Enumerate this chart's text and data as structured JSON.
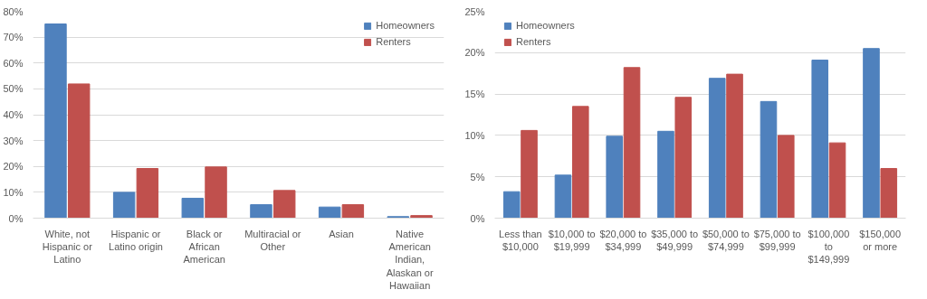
{
  "chart_data": [
    {
      "type": "bar",
      "categories": [
        "White, not Hispanic or Latino",
        "Hispanic or Latino origin",
        "Black or African American",
        "Multiracial or Other",
        "Asian",
        "Native American Indian, Alaskan or Hawaiian"
      ],
      "series": [
        {
          "name": "Homeowners",
          "color": "#4f81bd",
          "values": [
            75.1,
            10.0,
            7.7,
            5.2,
            4.3,
            0.6
          ]
        },
        {
          "name": "Renters",
          "color": "#c0504d",
          "values": [
            51.9,
            19.2,
            19.8,
            10.7,
            5.2,
            1.0
          ]
        }
      ],
      "ylim": [
        0,
        80
      ],
      "yticks": [
        {
          "value": 0,
          "label": "0%"
        },
        {
          "value": 10,
          "label": "10%"
        },
        {
          "value": 20,
          "label": "20%"
        },
        {
          "value": 30,
          "label": "30%"
        },
        {
          "value": 40,
          "label": "40%"
        },
        {
          "value": 50,
          "label": "50%"
        },
        {
          "value": 60,
          "label": "60%"
        },
        {
          "value": 70,
          "label": "70%"
        },
        {
          "value": 80,
          "label": "80%"
        }
      ],
      "grid": "y",
      "legend": "top right"
    },
    {
      "type": "bar",
      "categories": [
        "Less than $10,000",
        "$10,000 to $19,999",
        "$20,000 to $34,999",
        "$35,000 to $49,999",
        "$50,000 to $74,999",
        "$75,000 to $99,999",
        "$100,000 to $149,999",
        "$150,000 or more"
      ],
      "series": [
        {
          "name": "Homeowners",
          "color": "#4f81bd",
          "values": [
            3.2,
            5.2,
            9.9,
            10.5,
            16.9,
            14.1,
            19.1,
            20.5
          ]
        },
        {
          "name": "Renters",
          "color": "#c0504d",
          "values": [
            10.6,
            13.5,
            18.2,
            14.6,
            17.4,
            10.0,
            9.1,
            6.0
          ]
        }
      ],
      "ylim": [
        0,
        25
      ],
      "yticks": [
        {
          "value": 0,
          "label": "0%"
        },
        {
          "value": 5,
          "label": "5%"
        },
        {
          "value": 10,
          "label": "10%"
        },
        {
          "value": 15,
          "label": "15%"
        },
        {
          "value": 20,
          "label": "20%"
        },
        {
          "value": 25,
          "label": "25%"
        }
      ],
      "grid": "y",
      "legend": "top left"
    }
  ]
}
